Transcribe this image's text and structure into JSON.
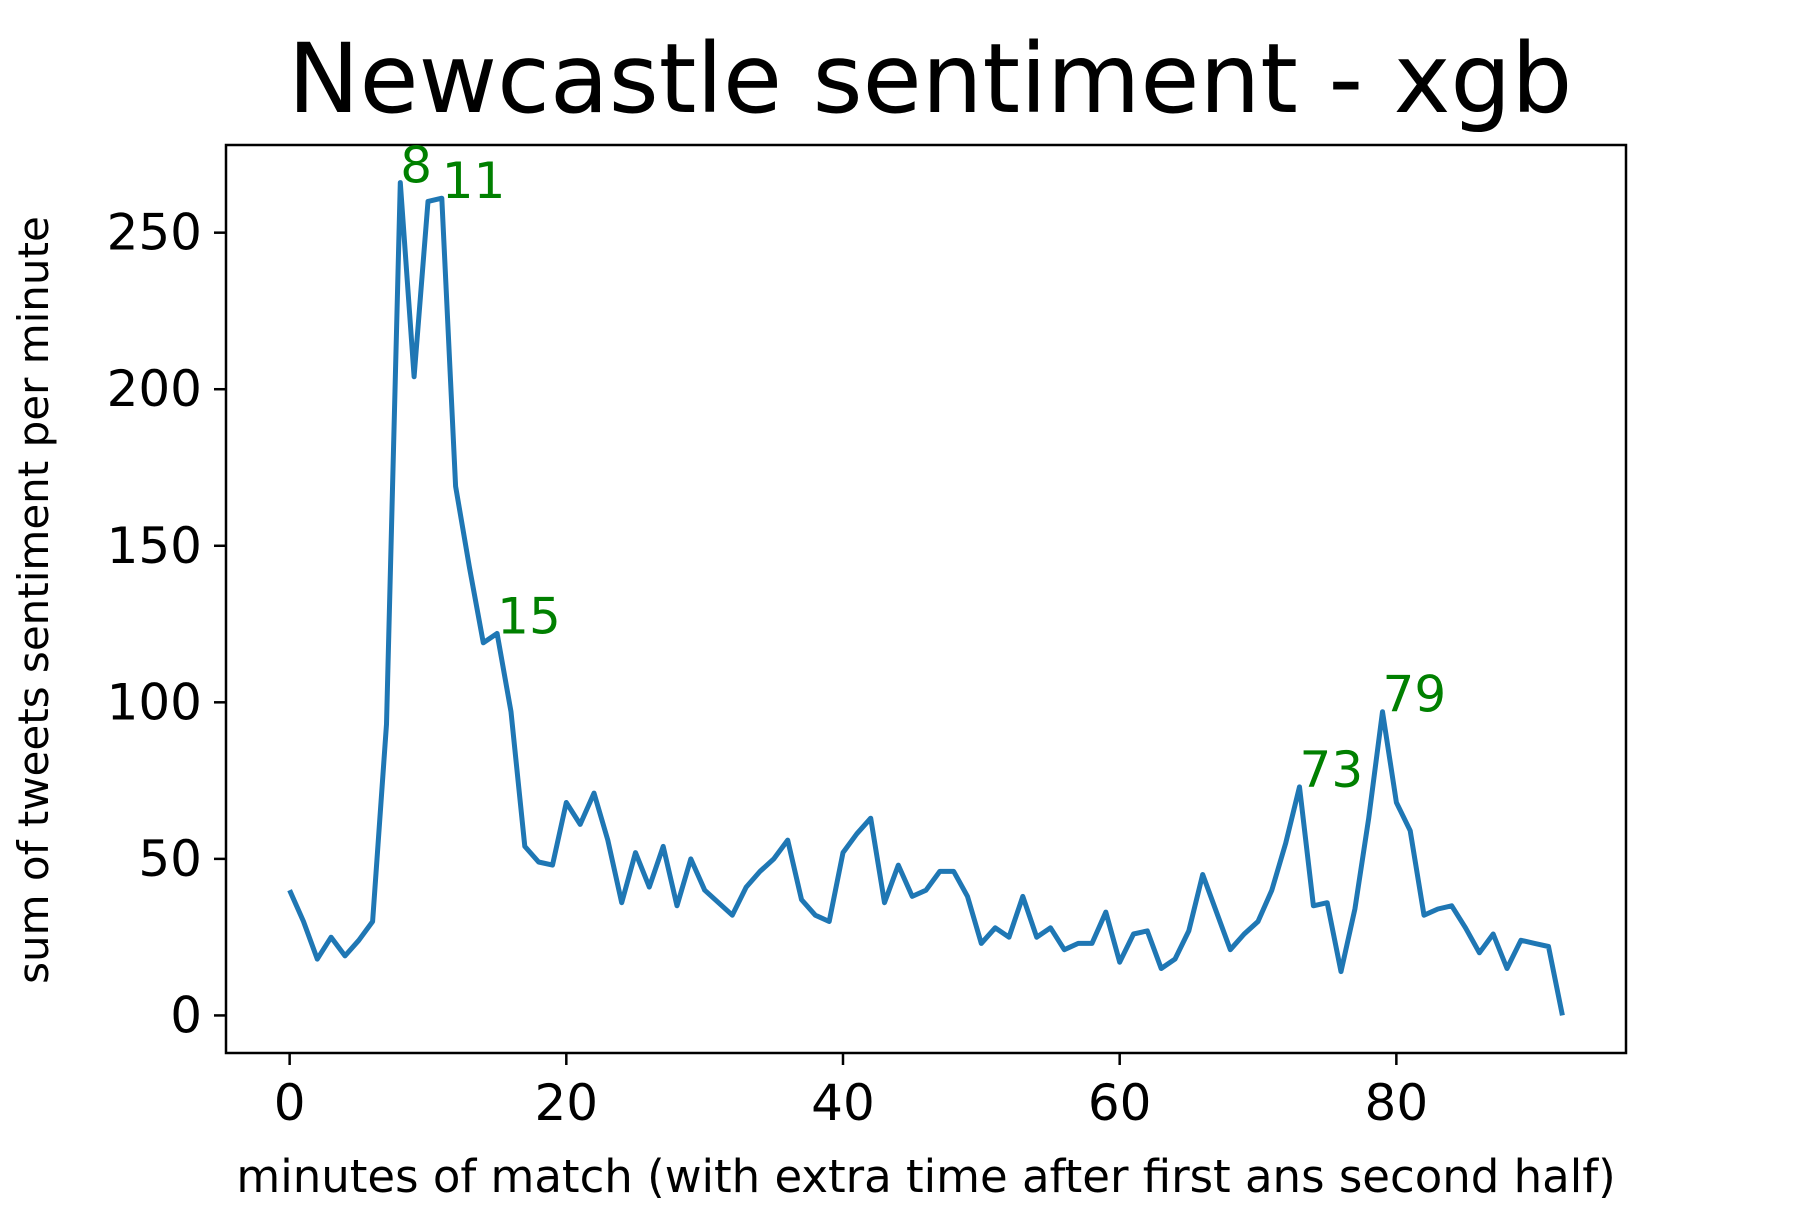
{
  "chart_data": {
    "type": "line",
    "title": "Newcastle sentiment - xgb",
    "xlabel": "minutes of match (with extra time after first ans second half)",
    "ylabel": "sum of tweets sentiment per minute",
    "xlim": [
      -4.6,
      96.6
    ],
    "ylim": [
      -12,
      278
    ],
    "xticks": [
      0,
      20,
      40,
      60,
      80
    ],
    "yticks": [
      0,
      50,
      100,
      150,
      200,
      250
    ],
    "grid": false,
    "line_color": "#1f77b4",
    "annotation_color": "#008000",
    "series": [
      {
        "x": [
          0,
          1,
          2,
          3,
          4,
          5,
          6,
          7,
          8,
          9,
          10,
          11,
          12,
          13,
          14,
          15,
          16,
          17,
          18,
          19,
          20,
          21,
          22,
          23,
          24,
          25,
          26,
          27,
          28,
          29,
          30,
          31,
          32,
          33,
          34,
          35,
          36,
          37,
          38,
          39,
          40,
          41,
          42,
          43,
          44,
          45,
          46,
          47,
          48,
          49,
          50,
          51,
          52,
          53,
          54,
          55,
          56,
          57,
          58,
          59,
          60,
          61,
          62,
          63,
          64,
          65,
          66,
          67,
          68,
          69,
          70,
          71,
          72,
          73,
          74,
          75,
          76,
          77,
          78,
          79,
          80,
          81,
          82,
          83,
          84,
          85,
          86,
          87,
          88,
          89,
          90,
          91,
          92
        ],
        "y": [
          40,
          30,
          18,
          25,
          19,
          24,
          30,
          93,
          266,
          204,
          260,
          261,
          169,
          143,
          119,
          122,
          97,
          54,
          49,
          48,
          68,
          61,
          71,
          56,
          36,
          52,
          41,
          54,
          35,
          50,
          40,
          36,
          32,
          41,
          46,
          50,
          56,
          37,
          32,
          30,
          52,
          58,
          63,
          36,
          48,
          38,
          40,
          46,
          46,
          38,
          23,
          28,
          25,
          38,
          25,
          28,
          21,
          23,
          23,
          33,
          17,
          26,
          27,
          15,
          18,
          27,
          45,
          33,
          21,
          26,
          30,
          40,
          55,
          73,
          35,
          36,
          14,
          34,
          63,
          97,
          68,
          59,
          32,
          34,
          35,
          28,
          20,
          26,
          15,
          24,
          23,
          22,
          0
        ]
      }
    ],
    "annotations": [
      {
        "text": "8",
        "x": 8,
        "y": 266
      },
      {
        "text": "11",
        "x": 11,
        "y": 261
      },
      {
        "text": "15",
        "x": 15,
        "y": 122
      },
      {
        "text": "73",
        "x": 73,
        "y": 73
      },
      {
        "text": "79",
        "x": 79,
        "y": 97
      }
    ]
  }
}
